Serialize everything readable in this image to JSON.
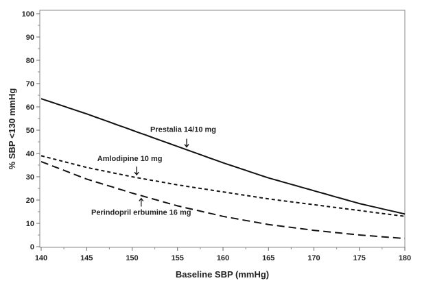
{
  "chart_data": {
    "type": "line",
    "title": "",
    "xlabel": "Baseline SBP (mmHg)",
    "ylabel": "% SBP <130 mmHg",
    "xlim": [
      140,
      180
    ],
    "ylim": [
      0,
      100
    ],
    "xticks": [
      140,
      145,
      150,
      155,
      160,
      165,
      170,
      175,
      180
    ],
    "yticks": [
      0,
      10,
      20,
      30,
      40,
      50,
      60,
      70,
      80,
      90,
      100
    ],
    "grid": false,
    "x": [
      140,
      145,
      150,
      155,
      160,
      165,
      170,
      175,
      180
    ],
    "series": [
      {
        "name": "Prestalia 14/10 mg",
        "style": "solid",
        "values": [
          63.5,
          57,
          50,
          43,
          36,
          29.5,
          24,
          18.5,
          14
        ],
        "arrow_x": 156,
        "arrow_dir": "down"
      },
      {
        "name": "Amlodipine 10 mg",
        "style": "short-dash",
        "values": [
          39,
          34,
          30,
          26.5,
          23.5,
          20.5,
          18,
          15.5,
          13
        ],
        "arrow_x": 150.5,
        "arrow_dir": "down"
      },
      {
        "name": "Perindopril erbumine 16 mg",
        "style": "long-dash",
        "values": [
          36.5,
          29,
          23,
          17.5,
          13,
          9.5,
          7,
          5,
          3.5
        ],
        "arrow_x": 151,
        "arrow_dir": "up"
      }
    ],
    "line_color": "#111111"
  }
}
